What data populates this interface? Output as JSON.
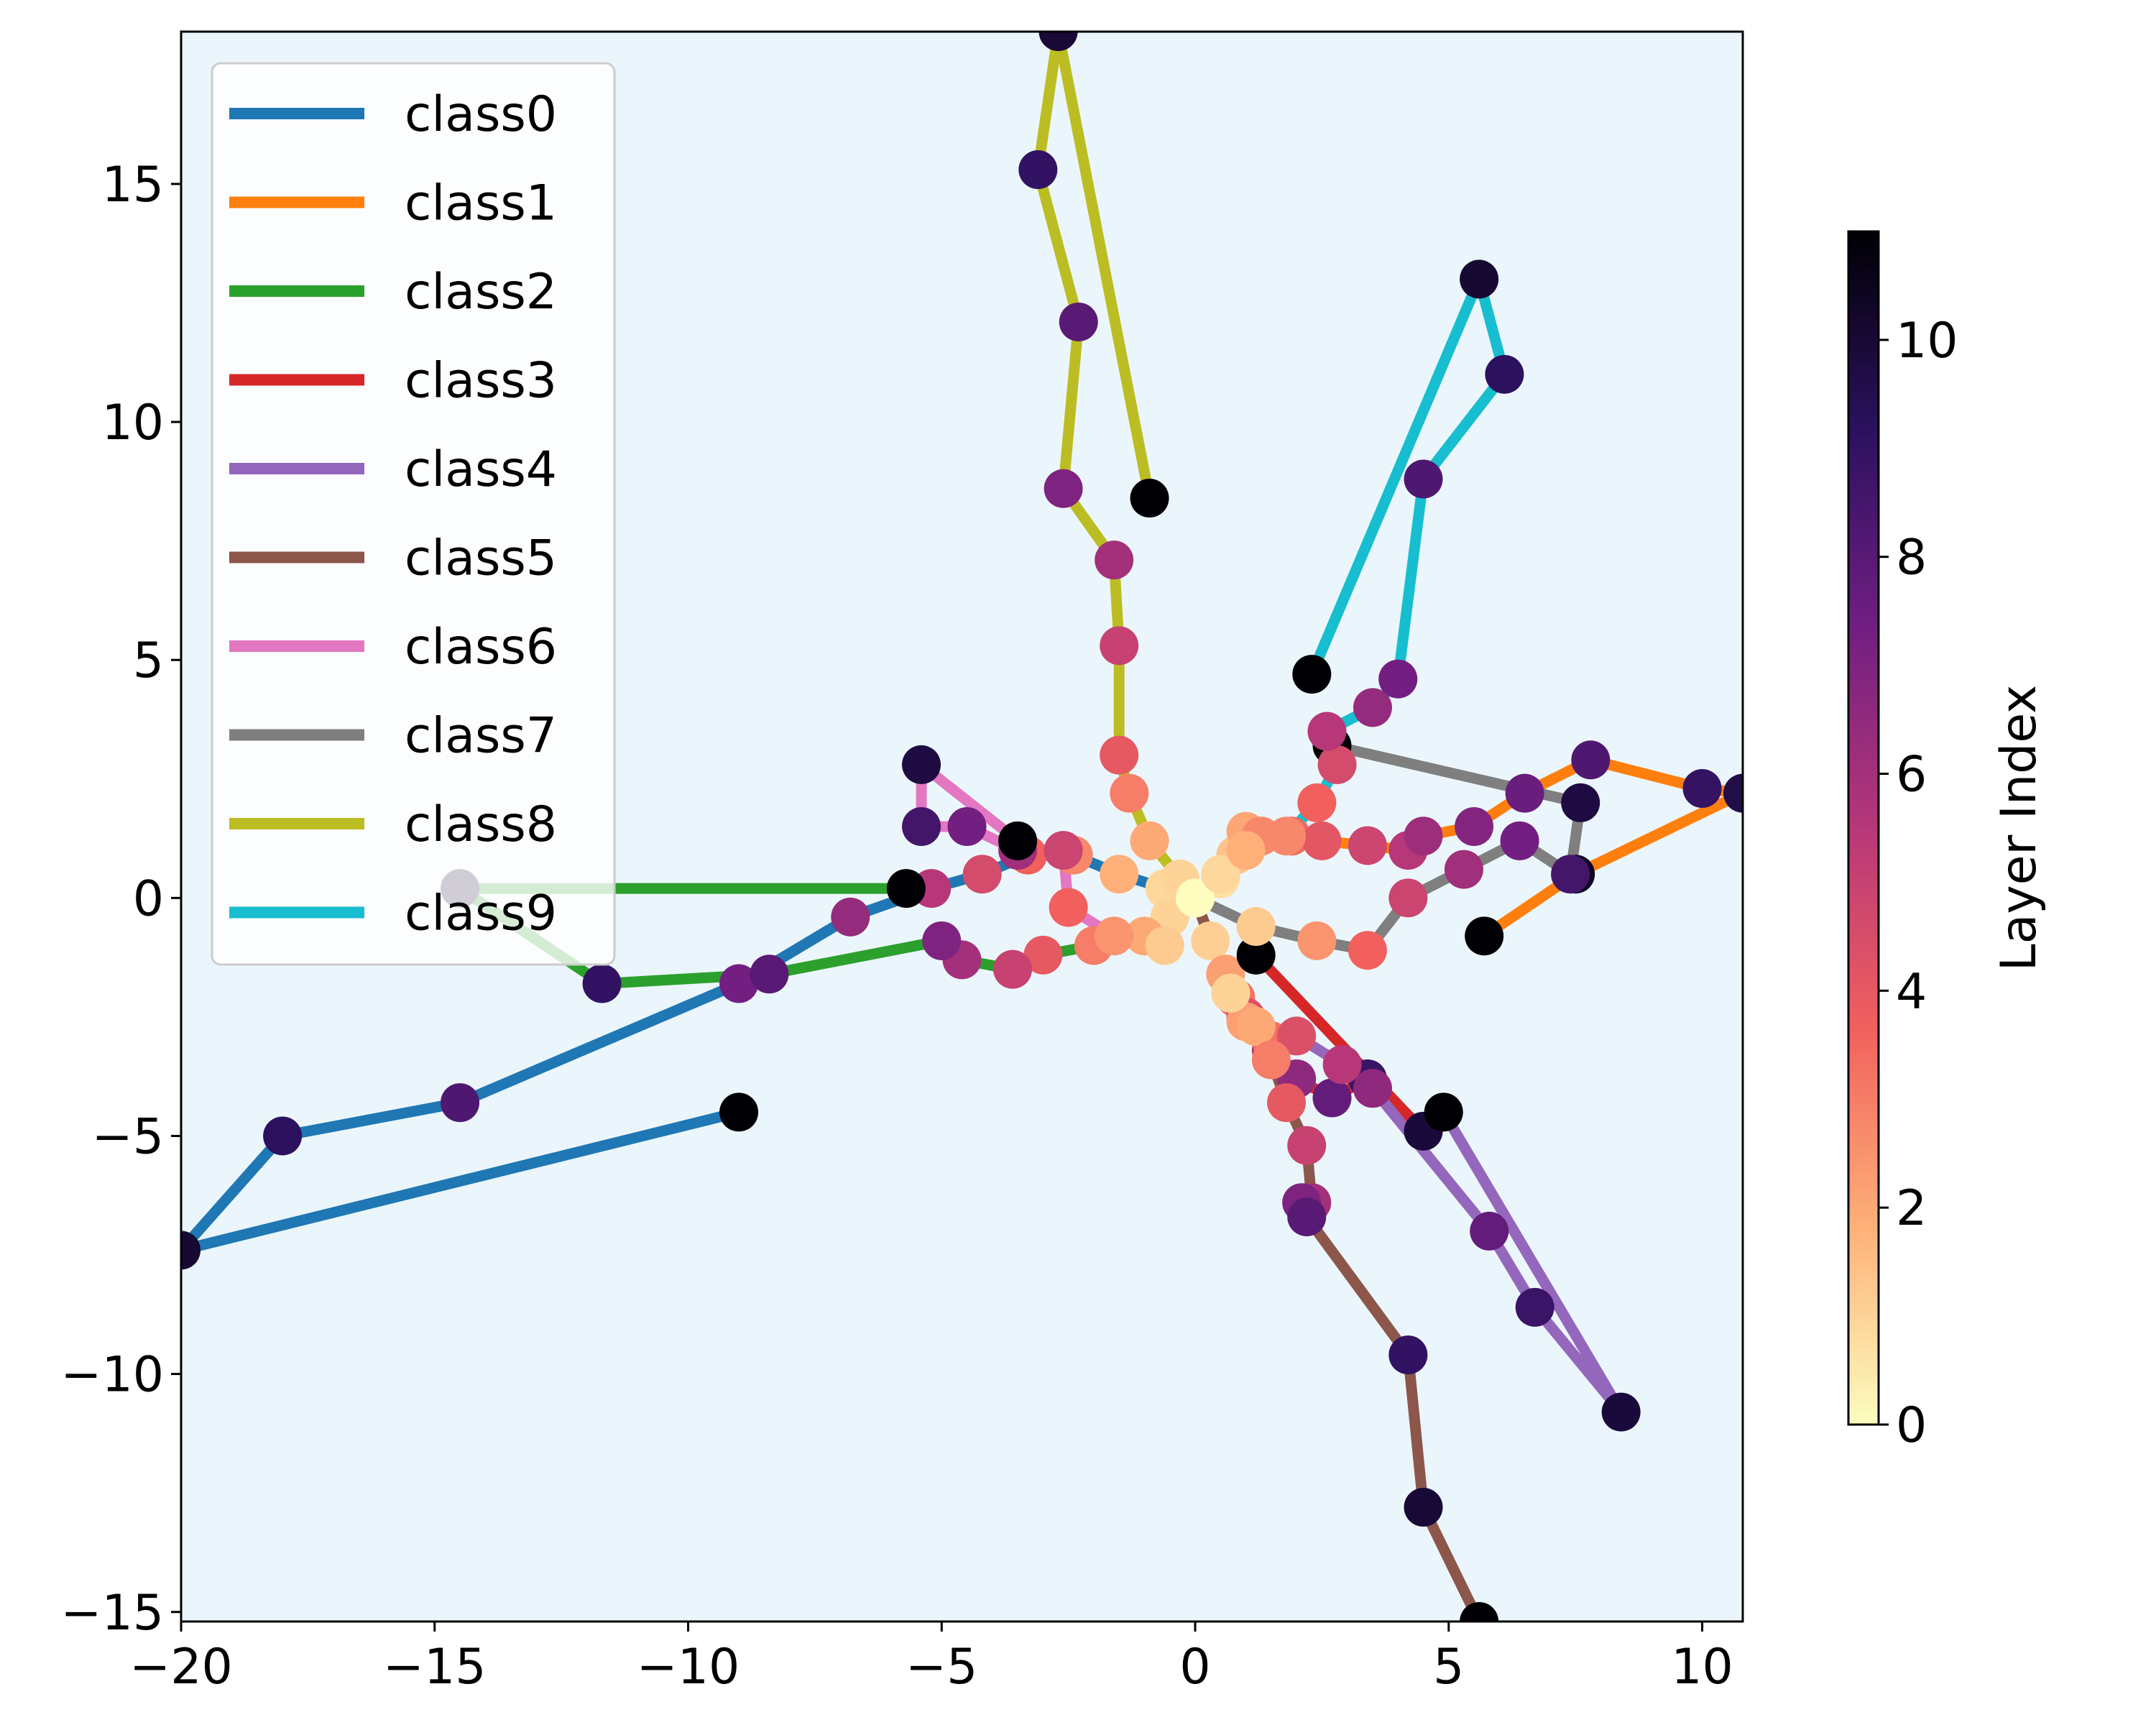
{
  "chart_data": {
    "type": "line",
    "title": "",
    "xlabel": "",
    "ylabel": "",
    "xlim": [
      -20.0,
      10.8
    ],
    "ylim": [
      -15.2,
      18.2
    ],
    "xticks": [
      -20,
      -15,
      -10,
      -5,
      0,
      5,
      10
    ],
    "yticks": [
      -15,
      -10,
      -5,
      0,
      5,
      10,
      15
    ],
    "xtick_labels": [
      "−20",
      "−15",
      "−10",
      "−5",
      "0",
      "5",
      "10"
    ],
    "ytick_labels": [
      "−15",
      "−10",
      "−5",
      "0",
      "5",
      "10",
      "15"
    ],
    "grid": false,
    "background": "#ebf6fc",
    "legend_position": "top-left",
    "colorbar": {
      "label": "Layer Index",
      "range": [
        0,
        11
      ],
      "ticks": [
        0,
        2,
        4,
        6,
        8,
        10
      ],
      "tick_labels": [
        "0",
        "2",
        "4",
        "6",
        "8",
        "10"
      ],
      "colormap_stops": [
        "#fcfdbf",
        "#feb078",
        "#f1605d",
        "#b73779",
        "#721f81",
        "#2c115f",
        "#000004"
      ]
    },
    "series": [
      {
        "name": "class0",
        "color": "#1f77b4",
        "x": [
          0,
          -0.6,
          -1.5,
          -2.4,
          -3.3,
          -4.2,
          -5.2,
          -6.8,
          -9.0,
          -14.5,
          -18.0,
          -20.0,
          -9.0
        ],
        "y": [
          0,
          0.2,
          0.5,
          0.9,
          0.9,
          0.5,
          0.2,
          -0.4,
          -1.8,
          -4.3,
          -5.0,
          -7.4,
          -4.5
        ]
      },
      {
        "name": "class1",
        "color": "#ff7f0e",
        "x": [
          0,
          0.5,
          0.8,
          1.0,
          1.3,
          1.9,
          2.5,
          3.4,
          4.2,
          4.5,
          5.5,
          6.5,
          7.8,
          10.0,
          10.8,
          7.5,
          5.7
        ],
        "y": [
          0,
          0.4,
          0.9,
          1.4,
          1.3,
          1.3,
          1.2,
          1.1,
          1.0,
          1.3,
          1.5,
          2.2,
          2.9,
          2.3,
          2.2,
          0.5,
          -0.8
        ]
      },
      {
        "name": "class2",
        "color": "#2ca02c",
        "x": [
          0,
          -0.5,
          -1.0,
          -2.0,
          -3.0,
          -3.6,
          -4.6,
          -5.0,
          -8.4,
          -11.7,
          -14.5,
          -5.7
        ],
        "y": [
          0,
          -0.4,
          -0.8,
          -1.0,
          -1.2,
          -1.5,
          -1.3,
          -0.9,
          -1.6,
          -1.8,
          0.2,
          0.2
        ]
      },
      {
        "name": "class3",
        "color": "#d62728",
        "x": [
          0,
          0.3,
          0.6,
          0.8,
          1.0,
          1.5,
          2.0,
          2.7,
          3.4,
          4.5,
          1.2
        ],
        "y": [
          0,
          -0.9,
          -1.6,
          -2.1,
          -2.5,
          -3.2,
          -3.8,
          -4.2,
          -3.8,
          -4.9,
          -1.2
        ]
      },
      {
        "name": "class4",
        "color": "#9467bd",
        "x": [
          0,
          0.7,
          1.0,
          1.5,
          2.0,
          2.9,
          3.5,
          5.8,
          6.7,
          8.4,
          4.9
        ],
        "y": [
          0,
          -2.0,
          -2.6,
          -3.0,
          -2.9,
          -3.5,
          -4.0,
          -7.0,
          -8.6,
          -10.8,
          -4.5
        ]
      },
      {
        "name": "class5",
        "color": "#8c564b",
        "x": [
          0,
          0.7,
          1.2,
          1.5,
          1.8,
          2.2,
          2.3,
          2.1,
          2.2,
          4.2,
          4.5,
          5.6
        ],
        "y": [
          0,
          -2.0,
          -2.7,
          -3.4,
          -4.3,
          -5.2,
          -6.4,
          -6.4,
          -6.7,
          -9.6,
          -12.8,
          -15.2
        ]
      },
      {
        "name": "class6",
        "color": "#e377c2",
        "x": [
          0,
          -0.6,
          -1.6,
          -2.5,
          -2.6,
          -3.5,
          -4.5,
          -5.4,
          -5.4,
          -3.5
        ],
        "y": [
          0,
          -1.0,
          -0.8,
          -0.2,
          1.0,
          1.0,
          1.5,
          1.5,
          2.8,
          1.2
        ]
      },
      {
        "name": "class7",
        "color": "#7f7f7f",
        "x": [
          0,
          1.2,
          2.4,
          3.4,
          4.2,
          5.3,
          6.4,
          7.4,
          7.6,
          2.7
        ],
        "y": [
          0,
          -0.6,
          -0.9,
          -1.1,
          0,
          0.6,
          1.2,
          0.5,
          2.0,
          3.2
        ]
      },
      {
        "name": "class8",
        "color": "#bcbd22",
        "x": [
          0,
          -0.3,
          -0.9,
          -1.3,
          -1.5,
          -1.5,
          -1.6,
          -2.6,
          -2.3,
          -3.1,
          -2.7,
          -0.9
        ],
        "y": [
          0,
          0.4,
          1.2,
          2.2,
          3.0,
          5.3,
          7.1,
          8.6,
          12.1,
          15.3,
          18.2,
          8.4
        ]
      },
      {
        "name": "class9",
        "color": "#17becf",
        "x": [
          0,
          0.5,
          1.0,
          1.8,
          2.4,
          2.8,
          2.6,
          3.5,
          4.0,
          4.5,
          6.1,
          5.6,
          2.3
        ],
        "y": [
          0,
          0.5,
          1.0,
          1.3,
          2.0,
          2.8,
          3.5,
          4.0,
          4.6,
          8.8,
          11.0,
          13.0,
          4.7
        ]
      }
    ]
  }
}
